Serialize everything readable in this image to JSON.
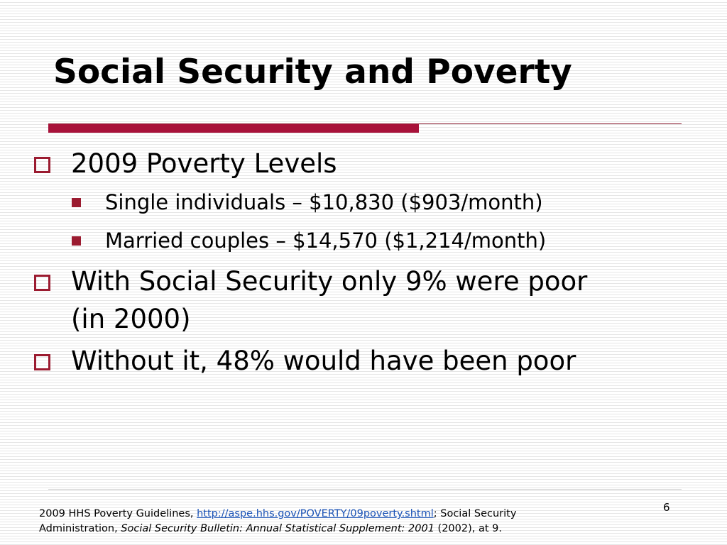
{
  "slide": {
    "title": "Social Security and Poverty",
    "page_number": "6",
    "accent_color": "#a8123a",
    "bullets": [
      {
        "text": "2009 Poverty Levels",
        "sub": [
          "Single individuals – $10,830 ($903/month)",
          "Married couples – $14,570 ($1,214/month)"
        ]
      },
      {
        "text_line1": "With Social Security only 9% were poor",
        "text_line2": "(in 2000)"
      },
      {
        "text": "Without it, 48% would have been poor"
      }
    ],
    "footnote": {
      "part1": "2009 HHS Poverty Guidelines, ",
      "link": "http://aspe.hhs.gov/POVERTY/09poverty.shtml",
      "part2": "; Social Security",
      "part3": "Administration, ",
      "italic": "Social Security Bulletin: Annual Statistical Supplement:  2001",
      "part4": " (2002), at 9."
    }
  }
}
